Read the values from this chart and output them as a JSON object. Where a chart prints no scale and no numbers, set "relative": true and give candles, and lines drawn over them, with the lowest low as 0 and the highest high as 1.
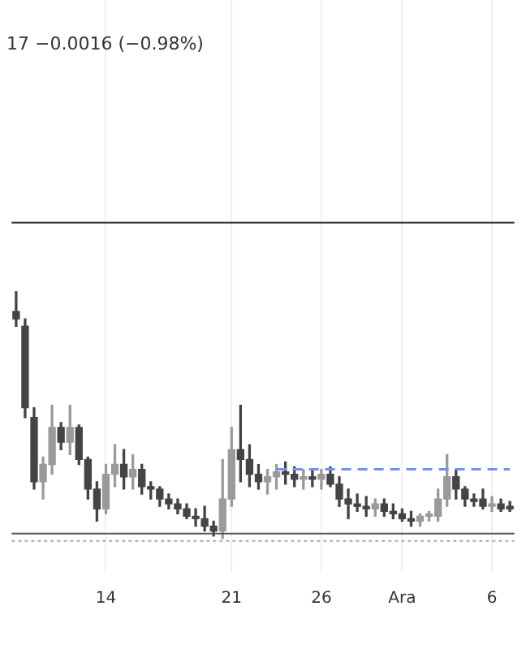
{
  "chart_data": {
    "type": "candlestick",
    "relative": true,
    "grid": "x",
    "legend": false,
    "annotations": [
      "17 −0.0016 (−0.98%)"
    ],
    "categories": [
      null,
      null,
      null,
      null,
      null,
      null,
      null,
      null,
      null,
      null,
      "14",
      null,
      null,
      null,
      null,
      null,
      null,
      null,
      null,
      null,
      null,
      null,
      null,
      null,
      "21",
      null,
      null,
      null,
      null,
      null,
      null,
      null,
      null,
      null,
      "26",
      null,
      null,
      null,
      null,
      null,
      null,
      null,
      null,
      "Ara",
      null,
      null,
      null,
      null,
      null,
      null,
      null,
      null,
      null,
      "6",
      null,
      null
    ],
    "ohlc": [
      [
        0.92,
        1.0,
        0.86,
        0.89
      ],
      [
        0.86,
        0.89,
        0.49,
        0.53
      ],
      [
        0.49,
        0.53,
        0.2,
        0.23
      ],
      [
        0.23,
        0.33,
        0.16,
        0.3
      ],
      [
        0.3,
        0.54,
        0.26,
        0.45
      ],
      [
        0.45,
        0.47,
        0.36,
        0.39
      ],
      [
        0.39,
        0.54,
        0.34,
        0.45
      ],
      [
        0.45,
        0.46,
        0.3,
        0.32
      ],
      [
        0.32,
        0.33,
        0.16,
        0.2
      ],
      [
        0.2,
        0.23,
        0.07,
        0.12
      ],
      [
        0.12,
        0.3,
        0.1,
        0.26
      ],
      [
        0.26,
        0.38,
        0.21,
        0.3
      ],
      [
        0.3,
        0.36,
        0.2,
        0.25
      ],
      [
        0.25,
        0.34,
        0.2,
        0.28
      ],
      [
        0.28,
        0.3,
        0.18,
        0.21
      ],
      [
        0.21,
        0.23,
        0.16,
        0.2
      ],
      [
        0.2,
        0.21,
        0.13,
        0.16
      ],
      [
        0.16,
        0.18,
        0.12,
        0.14
      ],
      [
        0.14,
        0.16,
        0.1,
        0.12
      ],
      [
        0.12,
        0.14,
        0.08,
        0.09
      ],
      [
        0.09,
        0.12,
        0.05,
        0.08
      ],
      [
        0.08,
        0.13,
        0.03,
        0.05
      ],
      [
        0.05,
        0.07,
        0.01,
        0.03
      ],
      [
        0.03,
        0.32,
        0.0,
        0.16
      ],
      [
        0.16,
        0.45,
        0.13,
        0.36
      ],
      [
        0.36,
        0.54,
        0.23,
        0.32
      ],
      [
        0.32,
        0.38,
        0.21,
        0.26
      ],
      [
        0.26,
        0.3,
        0.2,
        0.23
      ],
      [
        0.23,
        0.28,
        0.18,
        0.25
      ],
      [
        0.25,
        0.3,
        0.2,
        0.27
      ],
      [
        0.27,
        0.31,
        0.22,
        0.26
      ],
      [
        0.26,
        0.29,
        0.21,
        0.24
      ],
      [
        0.24,
        0.28,
        0.2,
        0.25
      ],
      [
        0.25,
        0.28,
        0.21,
        0.24
      ],
      [
        0.24,
        0.28,
        0.2,
        0.26
      ],
      [
        0.26,
        0.29,
        0.21,
        0.22
      ],
      [
        0.22,
        0.25,
        0.13,
        0.16
      ],
      [
        0.16,
        0.2,
        0.08,
        0.14
      ],
      [
        0.14,
        0.18,
        0.11,
        0.13
      ],
      [
        0.13,
        0.17,
        0.09,
        0.12
      ],
      [
        0.12,
        0.16,
        0.09,
        0.14
      ],
      [
        0.14,
        0.16,
        0.09,
        0.11
      ],
      [
        0.11,
        0.14,
        0.08,
        0.1
      ],
      [
        0.1,
        0.12,
        0.07,
        0.08
      ],
      [
        0.08,
        0.11,
        0.05,
        0.07
      ],
      [
        0.07,
        0.1,
        0.05,
        0.09
      ],
      [
        0.09,
        0.11,
        0.07,
        0.1
      ],
      [
        0.09,
        0.2,
        0.07,
        0.16
      ],
      [
        0.16,
        0.34,
        0.13,
        0.25
      ],
      [
        0.25,
        0.28,
        0.16,
        0.2
      ],
      [
        0.2,
        0.21,
        0.13,
        0.16
      ],
      [
        0.16,
        0.18,
        0.13,
        0.15
      ],
      [
        0.16,
        0.2,
        0.12,
        0.13
      ],
      [
        0.13,
        0.17,
        0.11,
        0.14
      ],
      [
        0.14,
        0.16,
        0.11,
        0.12
      ],
      [
        0.13,
        0.15,
        0.11,
        0.12
      ]
    ],
    "colors": [
      "#444444",
      "#444444",
      "#444444",
      "#9a9a9a",
      "#9a9a9a",
      "#444444",
      "#9a9a9a",
      "#444444",
      "#444444",
      "#444444",
      "#9a9a9a",
      "#9a9a9a",
      "#444444",
      "#9a9a9a",
      "#444444",
      "#444444",
      "#444444",
      "#444444",
      "#444444",
      "#444444",
      "#444444",
      "#444444",
      "#444444",
      "#9a9a9a",
      "#9a9a9a",
      "#444444",
      "#444444",
      "#444444",
      "#9a9a9a",
      "#9a9a9a",
      "#444444",
      "#444444",
      "#9a9a9a",
      "#444444",
      "#9a9a9a",
      "#444444",
      "#444444",
      "#444444",
      "#444444",
      "#444444",
      "#9a9a9a",
      "#444444",
      "#444444",
      "#444444",
      "#444444",
      "#9a9a9a",
      "#9a9a9a",
      "#9a9a9a",
      "#9a9a9a",
      "#444444",
      "#444444",
      "#444444",
      "#444444",
      "#9a9a9a",
      "#444444",
      "#444444"
    ],
    "series": [
      {
        "type": "line",
        "color": "#6f94f0",
        "line_style": "dashed",
        "values": [
          null,
          null,
          null,
          null,
          null,
          null,
          null,
          null,
          null,
          null,
          null,
          null,
          null,
          null,
          null,
          null,
          null,
          null,
          null,
          null,
          null,
          null,
          null,
          null,
          null,
          null,
          null,
          null,
          null,
          0.28,
          0.28,
          0.28,
          0.28,
          0.28,
          0.28,
          0.28,
          0.28,
          0.28,
          0.28,
          0.28,
          0.28,
          0.28,
          0.28,
          0.28,
          0.28,
          0.28,
          0.28,
          0.28,
          0.28,
          0.28,
          0.28,
          0.28,
          0.28,
          0.28,
          0.28,
          0.28
        ]
      }
    ],
    "ref_lines": [
      {
        "axis": "y",
        "value": 1.28,
        "color": "#222222",
        "line_style": "solid"
      },
      {
        "axis": "y",
        "value": 0.02,
        "color": "#555555",
        "line_style": "solid"
      },
      {
        "axis": "y",
        "value": -0.01,
        "color": "#aaaaaa",
        "line_style": "dotted"
      }
    ]
  }
}
